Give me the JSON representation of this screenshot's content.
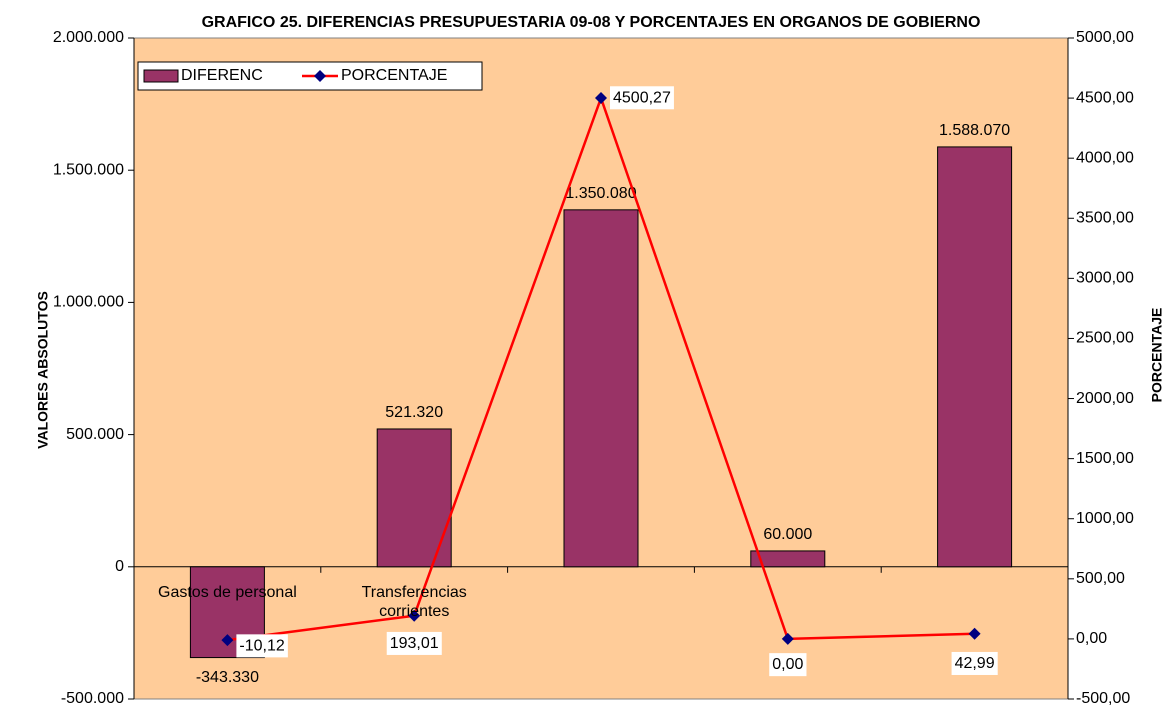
{
  "chart_data": {
    "type": "bar-line",
    "title": "GRAFICO 25. DIFERENCIAS PRESUPUESTARIA 09-08 Y PORCENTAJES EN ORGANOS DE GOBIERNO",
    "y_label": "VALORES ABSOLUTOS",
    "y2_label": "PORCENTAJE",
    "categories": [
      "Gastos de personal",
      "Transferencias corrientes",
      null,
      null,
      null
    ],
    "series": [
      {
        "name": "DIFERENC",
        "type": "bar",
        "color": "#993366",
        "values": [
          -343330,
          521320,
          1350080,
          60000,
          1588070
        ],
        "value_labels": [
          "-343.330",
          "521.320",
          "1.350.080",
          "60.000",
          "1.588.070"
        ]
      },
      {
        "name": "PORCENTAJE",
        "type": "line",
        "axis": "y2",
        "color": "#ff0000",
        "marker_color": "#000080",
        "values": [
          -10.12,
          193.01,
          4500.27,
          0.0,
          42.99
        ],
        "value_labels": [
          "-10,12",
          "193,01",
          "4500,27",
          "0,00",
          "42,99"
        ]
      }
    ],
    "ylim": [
      -500000,
      2000000
    ],
    "yticks": [
      {
        "value": -500000,
        "label": "-500.000"
      },
      0,
      {
        "value": 500000,
        "label": "500.000"
      },
      {
        "value": 1000000,
        "label": "1.000.000"
      },
      {
        "value": 1500000,
        "label": "1.500.000"
      },
      {
        "value": 2000000,
        "label": "2.000.000"
      }
    ],
    "y2lim": [
      -500,
      5000
    ],
    "y2ticks": [
      {
        "value": -500,
        "label": "-500,00"
      },
      {
        "value": 0,
        "label": "0,00"
      },
      {
        "value": 500,
        "label": "500,00"
      },
      {
        "value": 1000,
        "label": "1000,00"
      },
      {
        "value": 1500,
        "label": "1500,00"
      },
      {
        "value": 2000,
        "label": "2000,00"
      },
      {
        "value": 2500,
        "label": "2500,00"
      },
      {
        "value": 3000,
        "label": "3000,00"
      },
      {
        "value": 3500,
        "label": "3500,00"
      },
      {
        "value": 4000,
        "label": "4000,00"
      },
      {
        "value": 4500,
        "label": "4500,00"
      },
      {
        "value": 5000,
        "label": "5000,00"
      }
    ],
    "background": "#ffcc99",
    "legend": "top-left"
  }
}
